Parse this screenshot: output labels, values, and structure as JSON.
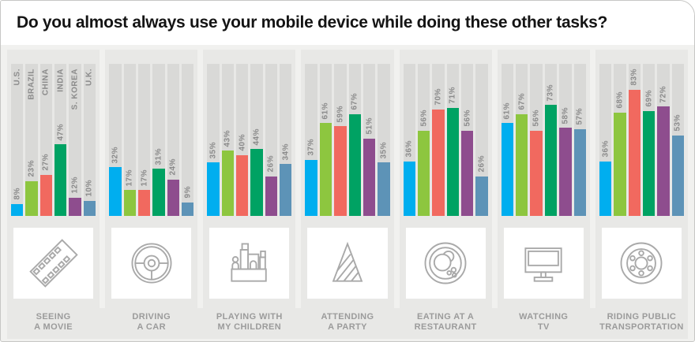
{
  "title": "Do you almost always use your mobile device while doing these other tasks?",
  "colors": {
    "card_bg": "#f1f1ef",
    "title_bg": "#ffffff",
    "panel_bg": "#e8e8e6",
    "track_bg": "#d9d9d7",
    "label_text": "#9b9b9b"
  },
  "chart_data": {
    "type": "bar",
    "title": "Do you almost always use your mobile device while doing these other tasks?",
    "categories": [
      "Seeing a movie",
      "Driving a car",
      "Playing with my children",
      "Attending a party",
      "Eating at a restaurant",
      "Watching TV",
      "Riding public transportation"
    ],
    "series": [
      {
        "name": "U.S.",
        "color": "#00aeef",
        "values": [
          8,
          32,
          35,
          37,
          36,
          61,
          36
        ]
      },
      {
        "name": "BRAZIL",
        "color": "#8dc63f",
        "values": [
          23,
          17,
          43,
          61,
          56,
          67,
          68
        ]
      },
      {
        "name": "CHINA",
        "color": "#f1695f",
        "values": [
          27,
          17,
          40,
          59,
          70,
          56,
          83
        ]
      },
      {
        "name": "INDIA",
        "color": "#00a263",
        "values": [
          47,
          31,
          44,
          67,
          71,
          73,
          69
        ]
      },
      {
        "name": "S. KOREA",
        "color": "#8e4d8e",
        "values": [
          12,
          24,
          26,
          51,
          56,
          58,
          72
        ]
      },
      {
        "name": "U.K.",
        "color": "#5d93b7",
        "values": [
          10,
          9,
          34,
          35,
          26,
          57,
          53
        ]
      }
    ],
    "ylim": [
      0,
      100
    ],
    "value_suffix": "%",
    "grid": false,
    "legend_position": "country names shown rotated atop first group's tracks; every bar labeled with its value"
  },
  "tasks": [
    {
      "icon": "film-strip-icon",
      "line1": "SEEING",
      "line2": "A MOVIE"
    },
    {
      "icon": "steering-wheel-icon",
      "line1": "DRIVING",
      "line2": "A CAR"
    },
    {
      "icon": "toy-blocks-icon",
      "line1": "PLAYING WITH",
      "line2": "MY CHILDREN"
    },
    {
      "icon": "party-hat-icon",
      "line1": "ATTENDING",
      "line2": "A PARTY"
    },
    {
      "icon": "plate-icon",
      "line1": "EATING AT A",
      "line2": "RESTAURANT"
    },
    {
      "icon": "tv-icon",
      "line1": "WATCHING",
      "line2": "TV"
    },
    {
      "icon": "wheel-icon",
      "line1": "RIDING PUBLIC",
      "line2": "TRANSPORTATION"
    }
  ]
}
